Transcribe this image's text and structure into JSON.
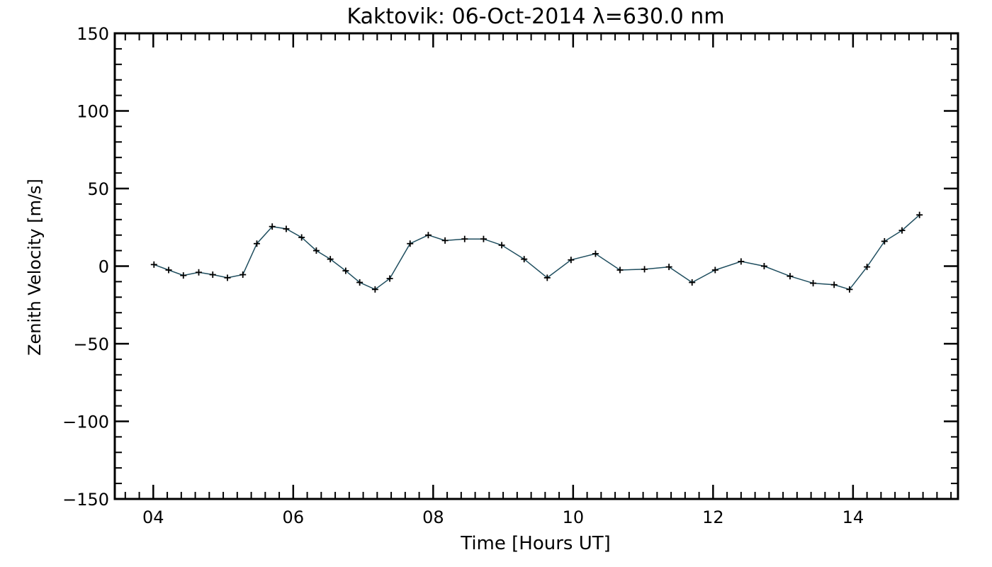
{
  "chart_data": {
    "type": "line",
    "title": "Kaktovik: 06-Oct-2014 λ=630.0 nm",
    "xlabel": "Time [Hours UT]",
    "ylabel": "Zenith Velocity [m/s]",
    "xlim": [
      3.45,
      15.5
    ],
    "ylim": [
      -150,
      150
    ],
    "xticks": [
      {
        "value": 4,
        "label": "04"
      },
      {
        "value": 6,
        "label": "06"
      },
      {
        "value": 8,
        "label": "08"
      },
      {
        "value": 10,
        "label": "10"
      },
      {
        "value": 12,
        "label": "12"
      },
      {
        "value": 14,
        "label": "14"
      }
    ],
    "yticks": [
      {
        "value": 150,
        "label": "150"
      },
      {
        "value": 100,
        "label": "100"
      },
      {
        "value": 50,
        "label": "50"
      },
      {
        "value": 0,
        "label": "0"
      },
      {
        "value": -50,
        "label": "−50"
      },
      {
        "value": -100,
        "label": "−100"
      },
      {
        "value": -150,
        "label": "−150"
      }
    ],
    "grid": false,
    "line_color": "#1f4e5f",
    "marker": "plus",
    "series": [
      {
        "x": [
          4.01,
          4.22,
          4.43,
          4.65,
          4.85,
          5.06,
          5.28,
          5.48,
          5.7,
          5.9,
          6.12,
          6.33,
          6.53,
          6.75,
          6.95,
          7.17,
          7.38,
          7.67,
          7.93,
          8.17,
          8.45,
          8.72,
          8.98,
          9.3,
          9.63,
          9.97,
          10.32,
          10.67,
          11.02,
          11.37,
          11.7,
          12.03,
          12.4,
          12.73,
          13.1,
          13.43,
          13.73,
          13.95,
          14.2,
          14.45,
          14.7,
          14.95
        ],
        "y": [
          1,
          -2.5,
          -6,
          -4,
          -5.5,
          -7.5,
          -5.5,
          14.5,
          25.5,
          24,
          18.5,
          10,
          4.5,
          -3,
          -10.5,
          -15,
          -8,
          14.5,
          20,
          16.5,
          17.5,
          17.5,
          13.5,
          4.5,
          -7.5,
          4,
          8,
          -2.5,
          -2,
          -0.5,
          -10.5,
          -2.5,
          3,
          0,
          -6.5,
          -11,
          -12,
          -15,
          -0.5,
          16,
          23,
          33
        ]
      }
    ]
  }
}
